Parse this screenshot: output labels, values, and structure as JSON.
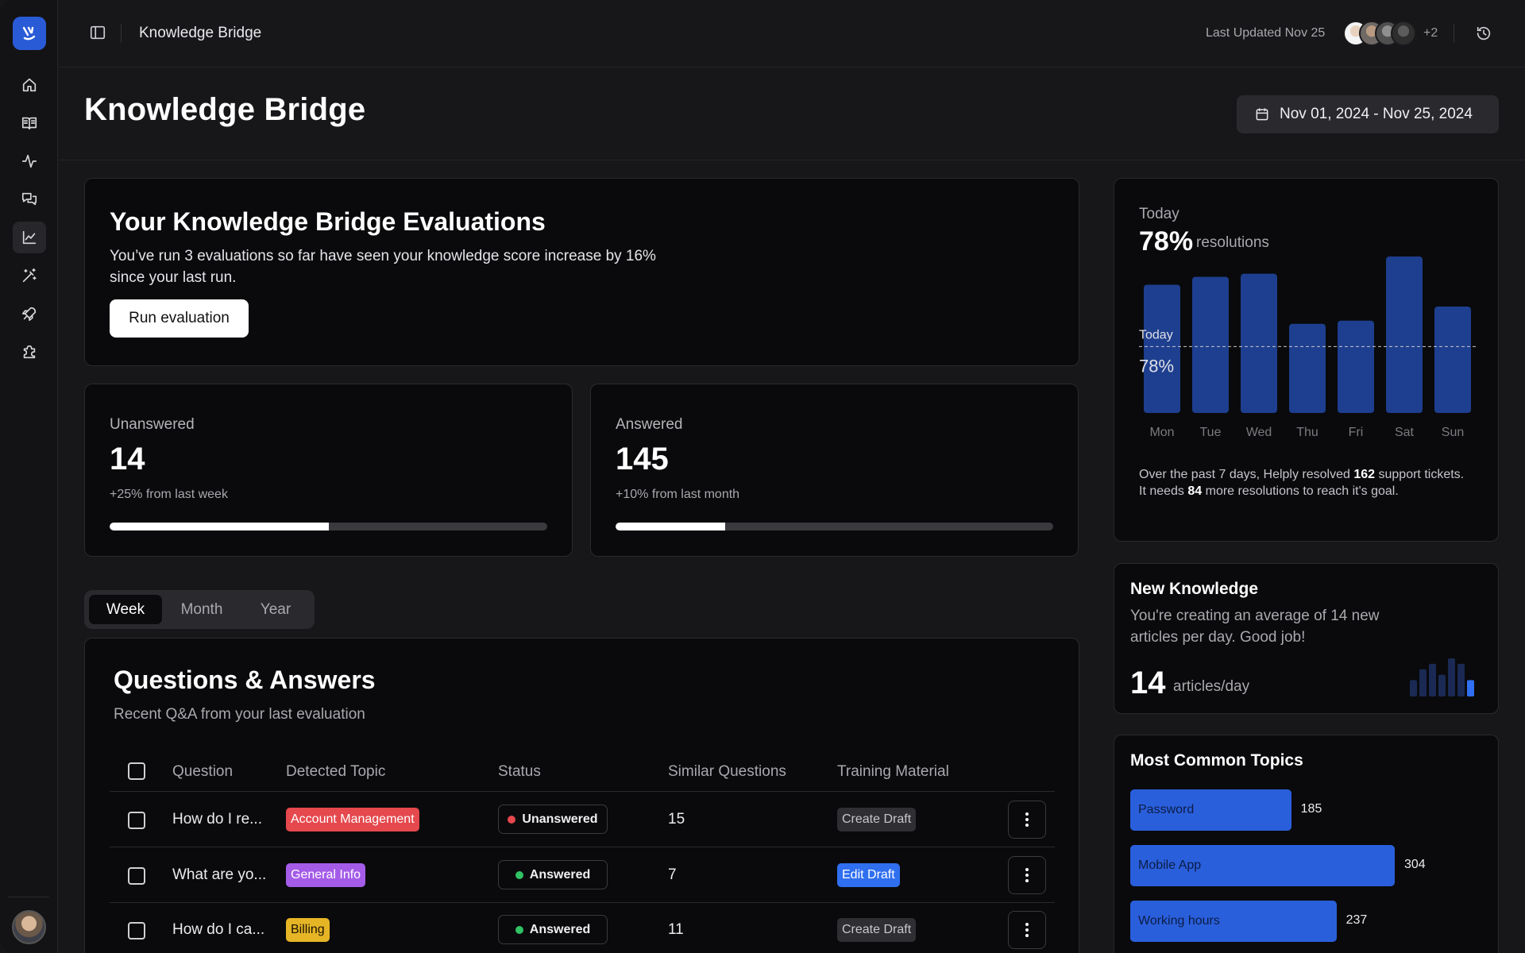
{
  "topbar": {
    "title": "Knowledge Bridge",
    "last_updated": "Last Updated Nov 25",
    "extra_collaborators": "+2"
  },
  "sidebar": {
    "items": [
      {
        "icon": "home-icon"
      },
      {
        "icon": "book-icon"
      },
      {
        "icon": "activity-icon"
      },
      {
        "icon": "messages-icon"
      },
      {
        "icon": "chart-icon",
        "active": true
      },
      {
        "icon": "magic-wand-icon"
      },
      {
        "icon": "rocket-icon"
      },
      {
        "icon": "puzzle-icon"
      }
    ]
  },
  "header": {
    "title": "Knowledge Bridge",
    "date_range": "Nov 01, 2024 - Nov 25, 2024"
  },
  "evaluation": {
    "title": "Your Knowledge Bridge Evaluations",
    "description": "You’ve run 3 evaluations so far have seen your knowledge score increase by 16% since your last run.",
    "button": "Run evaluation"
  },
  "stats": [
    {
      "label": "Unanswered",
      "value": "14",
      "change": "+25% from last week",
      "progress": 0.5
    },
    {
      "label": "Answered",
      "value": "145",
      "change": "+10% from last month",
      "progress": 0.25
    }
  ],
  "period_tabs": [
    "Week",
    "Month",
    "Year"
  ],
  "qa": {
    "title": "Questions & Answers",
    "description": "Recent Q&A from your last evaluation",
    "columns": [
      "Question",
      "Detected Topic",
      "Status",
      "Similar Questions",
      "Training Material"
    ],
    "rows": [
      {
        "question": "How do I re...",
        "topic": "Account Management",
        "topic_color": "#e5484d",
        "status": "Unanswered",
        "status_color": "#e5484d",
        "similar": "15",
        "material": "Create Draft",
        "material_style": "create"
      },
      {
        "question": "What are yo...",
        "topic": "General Info",
        "topic_color": "#a45be8",
        "status": "Answered",
        "status_color": "#30c264",
        "similar": "7",
        "material": "Edit Draft",
        "material_style": "edit"
      },
      {
        "question": "How do I ca...",
        "topic": "Billing",
        "topic_color": "#e6b526",
        "status": "Answered",
        "status_color": "#30c264",
        "similar": "11",
        "material": "Create Draft",
        "material_style": "create"
      }
    ]
  },
  "resolutions": {
    "label": "Today",
    "value": "78%",
    "unit": "resolutions",
    "marker_label": "Today",
    "marker_value": "78%",
    "foot_line1_a": "Over the past 7 days, Helply resolved ",
    "foot_line1_b": "162",
    "foot_line1_c": " support tickets.",
    "foot_line2_a": "It needs ",
    "foot_line2_b": "84",
    "foot_line2_c": " more resolutions to reach it's goal."
  },
  "chart_data": {
    "type": "bar",
    "categories": [
      "Mon",
      "Tue",
      "Wed",
      "Thu",
      "Fri",
      "Sat",
      "Sun"
    ],
    "values": [
      82,
      87,
      89,
      57,
      59,
      100,
      68
    ],
    "reference_line": 78,
    "ylim": [
      0,
      100
    ],
    "grid": false,
    "bar_color": "#1e3f8f"
  },
  "new_knowledge": {
    "title": "New Knowledge",
    "description": "You're creating an average of 14 new articles per day. Good job!",
    "value": "14",
    "unit": "articles/day",
    "spark": [
      3,
      5,
      6,
      4,
      7,
      6,
      3
    ]
  },
  "topics": {
    "title": "Most Common Topics",
    "items": [
      {
        "name": "Password",
        "value": 185
      },
      {
        "name": "Mobile App",
        "value": 304
      },
      {
        "name": "Working hours",
        "value": 237
      }
    ]
  }
}
